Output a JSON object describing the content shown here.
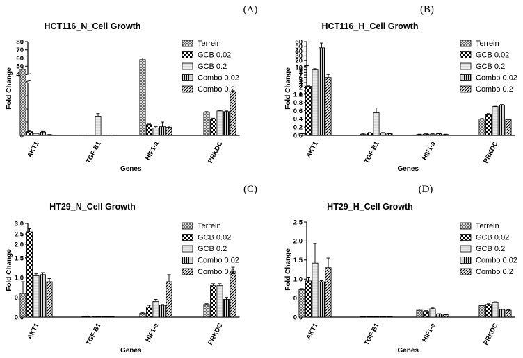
{
  "legend": [
    "Terrein",
    "GCB 0.02",
    "GCB 0.2",
    "Combo 0.02",
    "Combo 0.2"
  ],
  "chart_data": [
    {
      "panel": "(A)",
      "type": "bar",
      "title": "HCT116_N_Cell Growth",
      "xlabel": "Genes",
      "ylabel": "Fold Change",
      "categories": [
        "AKT1",
        "TGF-B1",
        "HIF1-a",
        "PRKDC"
      ],
      "series": [
        {
          "name": "Terrein",
          "values": [
            46,
            0.0,
            58,
            1.75
          ],
          "errors": [
            3,
            0,
            2,
            0.05
          ]
        },
        {
          "name": "GCB 0.02",
          "values": [
            0.28,
            0.0,
            0.8,
            1.25
          ],
          "errors": [
            0.05,
            0,
            0.05,
            0.05
          ]
        },
        {
          "name": "GCB 0.2",
          "values": [
            0.15,
            1.45,
            0.55,
            1.85
          ],
          "errors": [
            0.03,
            0.2,
            0.1,
            0.05
          ]
        },
        {
          "name": "Combo 0.02",
          "values": [
            0.25,
            0.0,
            0.65,
            1.8
          ],
          "errors": [
            0.05,
            0,
            0.35,
            0.05
          ]
        },
        {
          "name": "Combo 0.2",
          "values": [
            0.05,
            0.0,
            0.6,
            3.3
          ],
          "errors": [
            0.02,
            0,
            0.1,
            0.08
          ]
        }
      ],
      "y_segments": [
        {
          "range": [
            0,
            4
          ],
          "ticks": [
            "0",
            "1",
            "2",
            "3",
            "4"
          ],
          "tick_values": [
            0,
            1,
            2,
            3,
            4
          ]
        },
        {
          "range": [
            40,
            80
          ],
          "ticks": [
            "40",
            "50",
            "60",
            "70",
            "80"
          ],
          "tick_values": [
            40,
            50,
            60,
            70,
            80
          ]
        }
      ],
      "legend_placement": "right"
    },
    {
      "panel": "(B)",
      "type": "bar",
      "title": "HCT116_H_Cell Growth",
      "xlabel": "Genes",
      "ylabel": "Fold Change",
      "categories": [
        "AKT1",
        "TGF-B1",
        "HIF1-a",
        "PRKDC"
      ],
      "series": [
        {
          "name": "Terrein",
          "values": [
            0.04,
            0.03,
            0.02,
            0.4
          ],
          "errors": [
            0.01,
            0.01,
            0.01,
            0.01
          ]
        },
        {
          "name": "GCB 0.02",
          "values": [
            2.5,
            0.06,
            0.03,
            0.5
          ],
          "errors": [
            0.2,
            0.01,
            0.01,
            0.03
          ]
        },
        {
          "name": "GCB 0.2",
          "values": [
            9,
            0.55,
            0.03,
            0.7
          ],
          "errors": [
            0.5,
            0.12,
            0.01,
            0.01
          ]
        },
        {
          "name": "Combo 0.02",
          "values": [
            47,
            0.06,
            0.04,
            0.74
          ],
          "errors": [
            10,
            0.01,
            0.01,
            0.01
          ]
        },
        {
          "name": "Combo 0.2",
          "values": [
            6,
            0.04,
            0.02,
            0.38
          ],
          "errors": [
            1.2,
            0.01,
            0.01,
            0.02
          ]
        }
      ],
      "y_segments": [
        {
          "range": [
            0,
            1
          ],
          "ticks": [
            "0.0",
            "0.2",
            "0.4",
            "0.6",
            "0.8",
            "1.0"
          ],
          "tick_values": [
            0,
            0.2,
            0.4,
            0.6,
            0.8,
            1.0
          ]
        },
        {
          "range": [
            1,
            10
          ],
          "ticks": [
            "1",
            "2",
            "3",
            "4",
            "5",
            "6",
            "7",
            "8",
            "9",
            "10"
          ],
          "tick_values": [
            1,
            2,
            3,
            4,
            5,
            6,
            7,
            8,
            9,
            10
          ]
        },
        {
          "range": [
            10,
            60
          ],
          "ticks": [
            "20",
            "30",
            "40",
            "50",
            "60"
          ],
          "tick_values": [
            20,
            30,
            40,
            50,
            60
          ]
        }
      ],
      "legend_placement": "right"
    },
    {
      "panel": "(C)",
      "type": "bar",
      "title": "HT29_N_Cell Growth",
      "xlabel": "Genes",
      "ylabel": "Fold Change",
      "categories": [
        "AKT1",
        "TGF-B1",
        "HIF1-a",
        "PRKDC"
      ],
      "series": [
        {
          "name": "Terrein",
          "values": [
            0.6,
            0.01,
            0.1,
            0.32
          ],
          "errors": [
            0.3,
            0.0,
            0.02,
            0.02
          ]
        },
        {
          "name": "GCB 0.02",
          "values": [
            2.6,
            0.02,
            0.25,
            0.8
          ],
          "errors": [
            0.15,
            0.0,
            0.05,
            0.05
          ]
        },
        {
          "name": "GCB 0.2",
          "values": [
            1.05,
            0.01,
            0.4,
            0.8
          ],
          "errors": [
            0.05,
            0.0,
            0.05,
            0.05
          ]
        },
        {
          "name": "Combo 0.02",
          "values": [
            1.08,
            0.01,
            0.3,
            0.45
          ],
          "errors": [
            0.05,
            0.0,
            0.02,
            0.05
          ]
        },
        {
          "name": "Combo 0.2",
          "values": [
            0.9,
            0.01,
            0.9,
            1.15
          ],
          "errors": [
            0.08,
            0.0,
            0.18,
            0.12
          ]
        }
      ],
      "y_segments": [
        {
          "range": [
            0,
            1.5
          ],
          "ticks": [
            "0.0",
            "0.5",
            "1.0",
            "1.5"
          ],
          "tick_values": [
            0,
            0.5,
            1.0,
            1.5
          ]
        },
        {
          "range": [
            1.5,
            3.0
          ],
          "ticks": [
            "2.0",
            "2.5",
            "3.0"
          ],
          "tick_values": [
            2.0,
            2.5,
            3.0
          ]
        }
      ],
      "legend_placement": "right"
    },
    {
      "panel": "(D)",
      "type": "bar",
      "title": "HT29_H_Cell Growth",
      "xlabel": "Genes",
      "ylabel": "Fold Change",
      "categories": [
        "AKT1",
        "TGF-B1",
        "HIF1-a",
        "PRKDC"
      ],
      "series": [
        {
          "name": "Terrein",
          "values": [
            0.72,
            0.01,
            0.18,
            0.3
          ],
          "errors": [
            0.03,
            0.0,
            0.03,
            0.02
          ]
        },
        {
          "name": "GCB 0.02",
          "values": [
            0.95,
            0.01,
            0.15,
            0.33
          ],
          "errors": [
            0.1,
            0.0,
            0.02,
            0.02
          ]
        },
        {
          "name": "GCB 0.2",
          "values": [
            1.42,
            0.01,
            0.22,
            0.38
          ],
          "errors": [
            0.52,
            0.0,
            0.02,
            0.02
          ]
        },
        {
          "name": "Combo 0.02",
          "values": [
            0.93,
            0.01,
            0.08,
            0.2
          ],
          "errors": [
            0.03,
            0.0,
            0.01,
            0.01
          ]
        },
        {
          "name": "Combo 0.2",
          "values": [
            1.3,
            0.01,
            0.06,
            0.18
          ],
          "errors": [
            0.25,
            0.0,
            0.01,
            0.01
          ]
        }
      ],
      "y_segments": [
        {
          "range": [
            0,
            2.5
          ],
          "ticks": [
            "0.0",
            "0.5",
            "1.0",
            "1.5",
            "2.0",
            "2.5"
          ],
          "tick_values": [
            0,
            0.5,
            1.0,
            1.5,
            2.0,
            2.5
          ]
        }
      ],
      "legend_placement": "right"
    }
  ]
}
